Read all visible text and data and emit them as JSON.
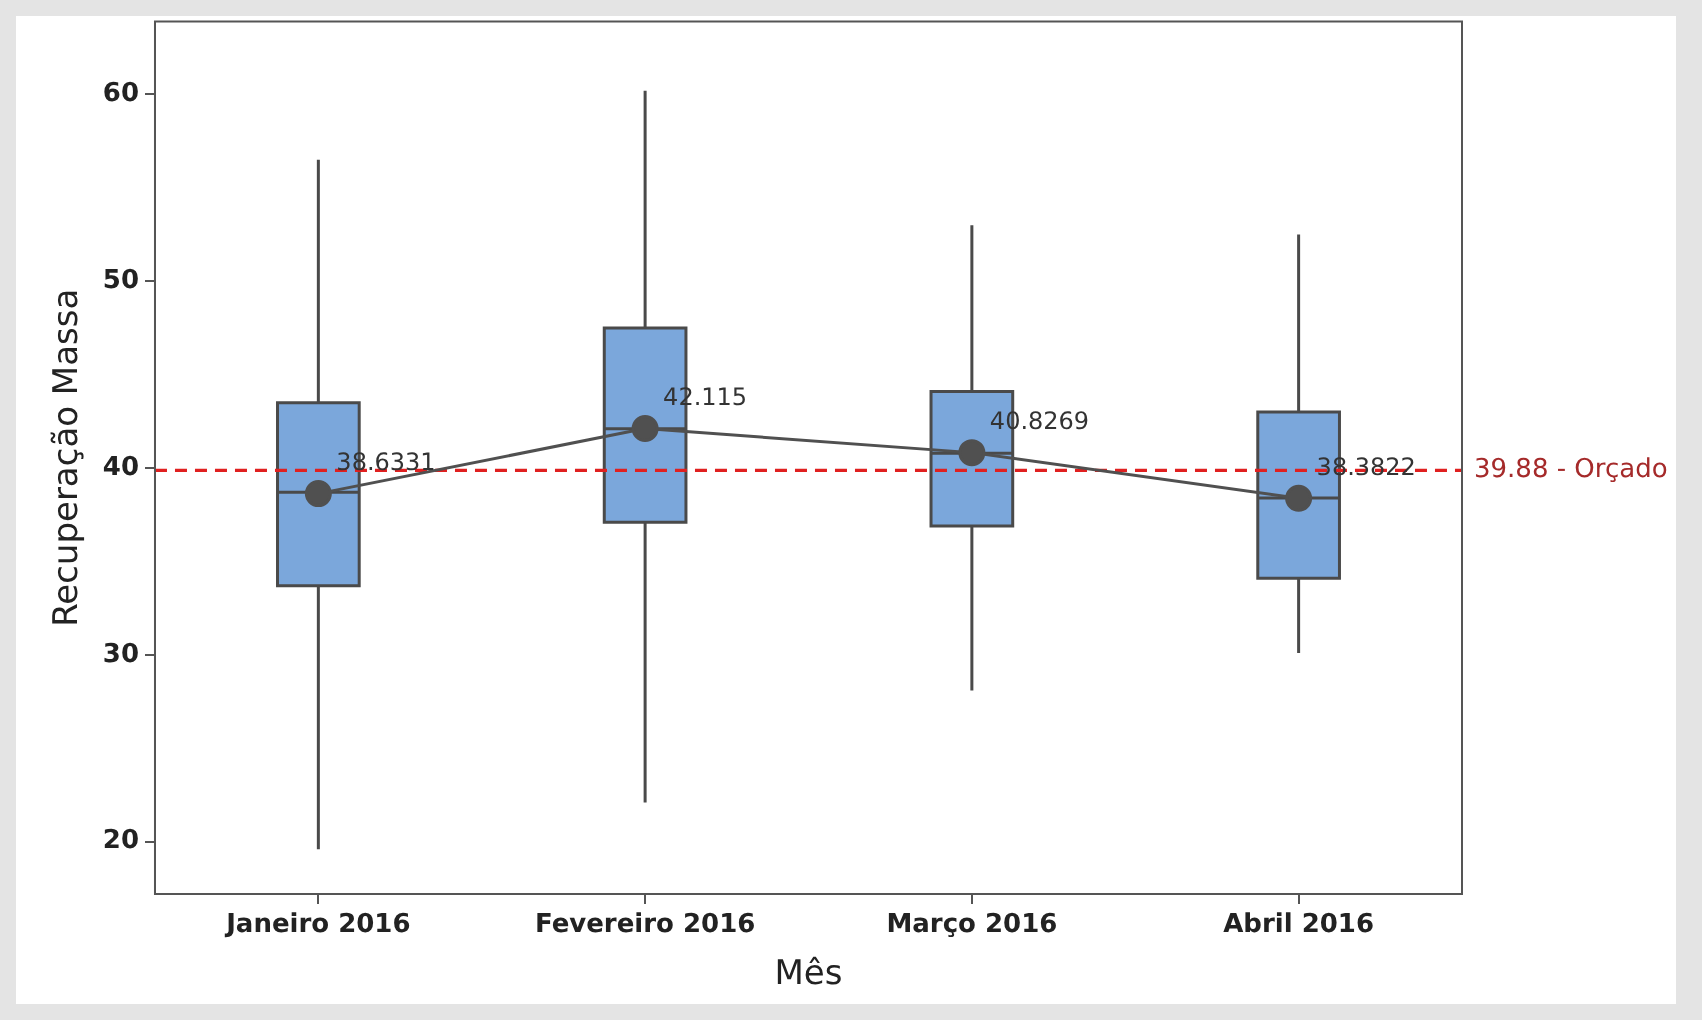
{
  "chart_data": {
    "type": "box",
    "xlabel": "Mês",
    "ylabel": "Recuperação Massa",
    "categories": [
      "Janeiro 2016",
      "Fevereiro 2016",
      "Março 2016",
      "Abril 2016"
    ],
    "color": "#7ba7db",
    "boxes": [
      {
        "low": 19.6,
        "q1": 33.7,
        "median": 38.7,
        "q3": 43.5,
        "high": 56.5
      },
      {
        "low": 22.1,
        "q1": 37.1,
        "median": 42.1,
        "q3": 47.5,
        "high": 60.2
      },
      {
        "low": 28.1,
        "q1": 36.9,
        "median": 40.8,
        "q3": 44.1,
        "high": 53.0
      },
      {
        "low": 30.1,
        "q1": 34.1,
        "median": 38.4,
        "q3": 43.0,
        "high": 52.5
      }
    ],
    "series": [
      {
        "type": "line",
        "color": "#505050",
        "values": [
          38.6331,
          42.115,
          40.8269,
          38.3822
        ],
        "marker": "circle",
        "data_labels": true
      }
    ],
    "ref_lines": [
      {
        "axis": "y",
        "value": 39.88,
        "label": "39.88 - Orçado",
        "color": "#e02020",
        "line_style": "dashed"
      }
    ],
    "ylim": [
      17.2,
      63.9
    ],
    "yticks": [
      20,
      30,
      40,
      50,
      60
    ],
    "grid": false,
    "legend": false
  }
}
